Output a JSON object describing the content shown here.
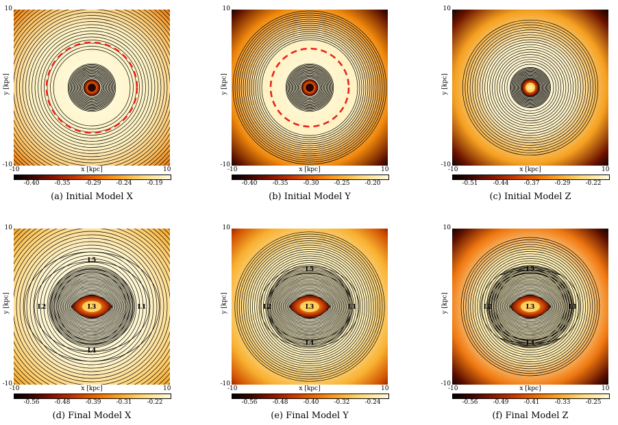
{
  "axes": {
    "ymax": "10",
    "ymin": "-10",
    "xmin": "-10",
    "xmax": "10",
    "xlabel": "x [kpc]",
    "ylabel": "y [kpc]"
  },
  "panels": [
    {
      "caption": "(a) Initial Model X",
      "ticks": [
        "-0.40",
        "-0.35",
        "-0.29",
        "-0.24",
        "-0.19"
      ]
    },
    {
      "caption": "(b) Initial Model Y",
      "ticks": [
        "-0.40",
        "-0.35",
        "-0.30",
        "-0.25",
        "-0.20"
      ]
    },
    {
      "caption": "(c) Initial Model Z",
      "ticks": [
        "-0.51",
        "-0.44",
        "-0.37",
        "-0.29",
        "-0.22"
      ]
    },
    {
      "caption": "(d) Final Model X",
      "ticks": [
        "-0.56",
        "-0.48",
        "-0.39",
        "-0.31",
        "-0.22"
      ]
    },
    {
      "caption": "(e) Final Model Y",
      "ticks": [
        "-0.56",
        "-0.48",
        "-0.40",
        "-0.32",
        "-0.24"
      ]
    },
    {
      "caption": "(f) Final Model Z",
      "ticks": [
        "-0.56",
        "-0.49",
        "-0.41",
        "-0.33",
        "-0.25"
      ]
    }
  ],
  "lagrange_labels": {
    "L1": "L1",
    "L2": "L2",
    "L3": "L3",
    "L4": "L4",
    "L5": "L5"
  },
  "colors": {
    "ring_dash": "#e8211c",
    "contour": "#000000"
  }
}
